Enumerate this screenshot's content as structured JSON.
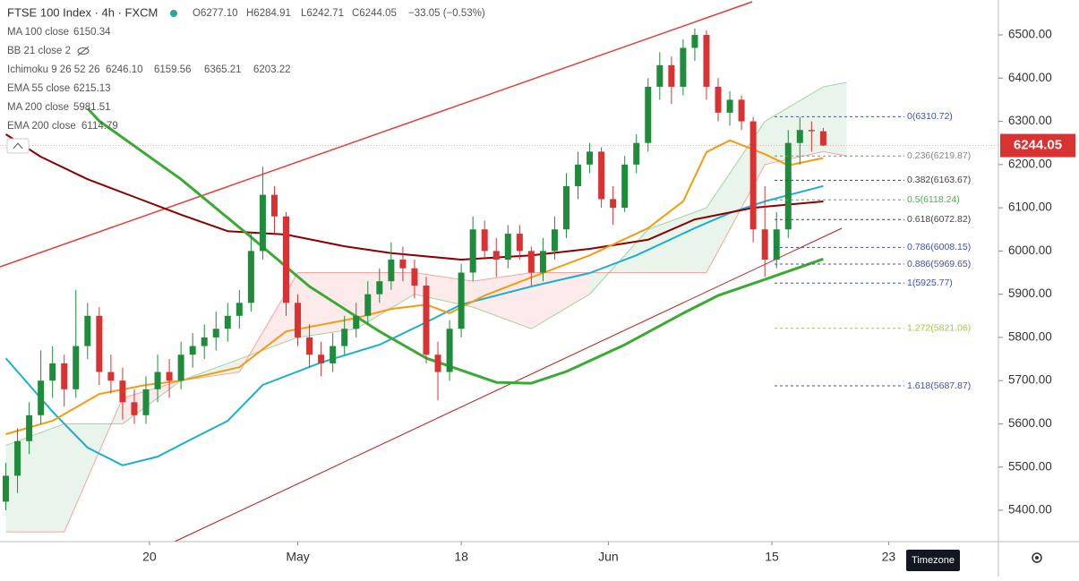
{
  "header": {
    "symbol": "FTSE 100 Index · 4h · FXCM",
    "ohlc": [
      "O6277.10",
      "H6284.91",
      "L6242.71",
      "C6244.05",
      "−33.05 (−0.53%)"
    ]
  },
  "indicators": [
    {
      "name": "MA 100 close",
      "values": [
        "6150.34"
      ],
      "colors": [
        "#00bcd4"
      ]
    },
    {
      "name": "BB 21 close 2"
    },
    {
      "name": "Ichimoku 9 26 52 26",
      "values": [
        "6246.10",
        "6159.56",
        "6365.21",
        "6203.22"
      ],
      "colors": [
        "#2196f3",
        "#880e4f",
        "#43a047",
        "#d32f2f"
      ]
    },
    {
      "name": "EMA 55 close",
      "values": [
        "6215.13"
      ],
      "colors": [
        "#f39c12"
      ]
    },
    {
      "name": "MA 200 close",
      "values": [
        "5981.51"
      ],
      "colors": [
        "#3aaa35"
      ]
    },
    {
      "name": "EMA 200 close",
      "values": [
        "6114.79"
      ],
      "colors": [
        "#8b0000"
      ]
    }
  ],
  "chart_data": {
    "type": "candlestick",
    "up_color": "#1e8c3a",
    "down_color": "#d83232",
    "open": [
      5420,
      5480,
      5560,
      5620,
      5700,
      5740,
      5680,
      5780,
      5850,
      5720,
      5700,
      5650,
      5620,
      5680,
      5720,
      5700,
      5760,
      5780,
      5800,
      5820,
      5850,
      5880,
      6000,
      6130,
      6080,
      5880,
      5800,
      5760,
      5740,
      5780,
      5820,
      5850,
      5900,
      5930,
      5980,
      5960,
      5920,
      5760,
      5720,
      5820,
      5950,
      6050,
      6000,
      5980,
      6040,
      6000,
      5950,
      6000,
      6050,
      6150,
      6200,
      6230,
      6120,
      6100,
      6200,
      6250,
      6380,
      6430,
      6380,
      6470,
      6500,
      6380,
      6320,
      6350,
      6300,
      6050,
      5980,
      6050,
      6250,
      6280,
      6277.1
    ],
    "high": [
      5510,
      5590,
      5650,
      5770,
      5780,
      5760,
      5910,
      5880,
      5870,
      5760,
      5730,
      5680,
      5710,
      5760,
      5750,
      5790,
      5810,
      5830,
      5860,
      5880,
      5910,
      6040,
      6195,
      6150,
      6090,
      5900,
      5830,
      5790,
      5810,
      5850,
      5880,
      5930,
      5960,
      6020,
      6010,
      5980,
      5940,
      5790,
      5840,
      5970,
      6080,
      6070,
      6030,
      6060,
      6060,
      6010,
      6030,
      6080,
      6180,
      6230,
      6250,
      6240,
      6150,
      6220,
      6270,
      6400,
      6460,
      6450,
      6490,
      6515,
      6510,
      6400,
      6370,
      6360,
      6310,
      6150,
      6090,
      6280,
      6310,
      6300,
      6284.91
    ],
    "low": [
      5400,
      5440,
      5530,
      5600,
      5660,
      5640,
      5660,
      5750,
      5690,
      5670,
      5610,
      5600,
      5600,
      5650,
      5660,
      5680,
      5730,
      5750,
      5770,
      5790,
      5820,
      5860,
      5980,
      6040,
      5850,
      5780,
      5730,
      5710,
      5720,
      5760,
      5800,
      5830,
      5880,
      5910,
      5930,
      5890,
      5740,
      5655,
      5700,
      5800,
      5930,
      5980,
      5940,
      5960,
      5980,
      5920,
      5930,
      5980,
      6030,
      6120,
      6180,
      6100,
      6060,
      6090,
      6180,
      6230,
      6350,
      6340,
      6360,
      6440,
      6350,
      6300,
      6290,
      6280,
      6020,
      5940,
      5960,
      6030,
      6200,
      6230,
      6242.71
    ],
    "close": [
      5480,
      5560,
      5620,
      5700,
      5740,
      5680,
      5780,
      5850,
      5720,
      5700,
      5650,
      5620,
      5680,
      5720,
      5700,
      5760,
      5780,
      5800,
      5820,
      5850,
      5880,
      6000,
      6130,
      6080,
      5880,
      5800,
      5760,
      5740,
      5780,
      5820,
      5850,
      5900,
      5930,
      5980,
      5960,
      5920,
      5760,
      5720,
      5820,
      5950,
      6050,
      6000,
      5980,
      6040,
      6000,
      5950,
      6000,
      6050,
      6150,
      6200,
      6230,
      6120,
      6100,
      6200,
      6250,
      6380,
      6430,
      6380,
      6470,
      6500,
      6380,
      6320,
      6350,
      6300,
      6050,
      5980,
      6050,
      6250,
      6280,
      6277.1,
      6244.05
    ],
    "lines": [
      {
        "name": "MA 100 close",
        "color": "#1aafd0",
        "width": 2,
        "x": [
          0,
          4,
          7,
          10,
          13,
          16,
          19,
          22,
          27,
          32,
          36,
          39,
          45,
          50,
          54,
          59,
          62,
          65,
          70
        ],
        "values": [
          5752,
          5628,
          5545,
          5504,
          5524,
          5566,
          5607,
          5690,
          5742,
          5783,
          5835,
          5876,
          5918,
          5949,
          5990,
          6053,
          6088,
          6115,
          6150.34
        ]
      },
      {
        "name": "EMA 200 close",
        "color": "#8b0000",
        "width": 2,
        "x": [
          0,
          3,
          7,
          11,
          15,
          19,
          24,
          29,
          33,
          39,
          45,
          50,
          55,
          59,
          64,
          70
        ],
        "values": [
          6270,
          6218,
          6166,
          6125,
          6084,
          6046,
          6038,
          6011,
          5995,
          5980,
          5990,
          6005,
          6026,
          6073,
          6100,
          6114.79
        ]
      },
      {
        "name": "EMA 55 close",
        "color": "#f39c12",
        "width": 2,
        "x": [
          0,
          4,
          8,
          12,
          15,
          20,
          24,
          30,
          33,
          36,
          38,
          41,
          45,
          50,
          55,
          58,
          60,
          62,
          65,
          67,
          70
        ],
        "values": [
          5576,
          5607,
          5669,
          5690,
          5700,
          5731,
          5814,
          5845,
          5866,
          5876,
          5856,
          5897,
          5939,
          5990,
          6053,
          6115,
          6229,
          6256,
          6224,
          6198,
          6215.13
        ]
      },
      {
        "name": "MA 200 close",
        "color": "#3aaa35",
        "width": 3,
        "x": [
          7,
          8,
          15,
          21,
          26,
          32,
          36,
          42,
          45,
          48,
          53,
          58,
          61,
          65,
          70
        ],
        "values": [
          6330,
          6301,
          6166,
          6032,
          5918,
          5814,
          5752,
          5696,
          5694,
          5721,
          5783,
          5856,
          5897,
          5934,
          5981.51
        ]
      }
    ],
    "cloud": {
      "x": [
        0,
        5,
        10,
        15,
        20,
        25,
        30,
        35,
        40,
        45,
        50,
        55,
        60,
        65,
        70,
        72
      ],
      "span_a": [
        5550,
        5600,
        5600,
        5700,
        5750,
        5800,
        5820,
        5900,
        5870,
        5820,
        5900,
        6050,
        6100,
        6300,
        6380,
        6390
      ],
      "span_b": [
        5350,
        5350,
        5660,
        5700,
        5720,
        5950,
        5950,
        5950,
        5930,
        5950,
        5950,
        5950,
        5950,
        6200,
        6230,
        6220
      ],
      "up_color": "#4caf50",
      "down_color": "#ef5350"
    },
    "fib": [
      {
        "label": "0(6310.72)",
        "value": 6310.72,
        "color": "#3f51b5"
      },
      {
        "label": "0.236(6219.87)",
        "value": 6219.87,
        "color": "#888888"
      },
      {
        "label": "0.382(6163.67)",
        "value": 6163.67,
        "color": "#444444"
      },
      {
        "label": "0.5(6118.24)",
        "value": 6118.24,
        "color": "#4caf50"
      },
      {
        "label": "0.618(6072.82)",
        "value": 6072.82,
        "color": "#444444"
      },
      {
        "label": "0.786(6008.15)",
        "value": 6008.15,
        "color": "#3f51b5"
      },
      {
        "label": "0.886(5969.65)",
        "value": 5969.65,
        "color": "#3f51b5"
      },
      {
        "label": "1(5925.77)",
        "value": 5925.77,
        "color": "#3f51b5"
      },
      {
        "label": "1.272(5821.06)",
        "value": 5821.06,
        "color": "#9acd32"
      },
      {
        "label": "1.618(5687.87)",
        "value": 5687.87,
        "color": "#3f51b5"
      }
    ],
    "xlim": [
      -0.5,
      85
    ],
    "ylim": [
      5327.5,
      6580.8
    ],
    "xticks": [
      {
        "value": 12.3,
        "label": "20"
      },
      {
        "value": 25,
        "label": "May"
      },
      {
        "value": 39,
        "label": "18"
      },
      {
        "value": 51.6,
        "label": "Jun"
      },
      {
        "value": 65.6,
        "label": "15"
      },
      {
        "value": 75.6,
        "label": "23"
      }
    ],
    "yticks": [
      {
        "value": 5400,
        "label": "5400.00"
      },
      {
        "value": 5500,
        "label": "5500.00"
      },
      {
        "value": 5600,
        "label": "5600.00"
      },
      {
        "value": 5700,
        "label": "5700.00"
      },
      {
        "value": 5800,
        "label": "5800.00"
      },
      {
        "value": 5900,
        "label": "5900.00"
      },
      {
        "value": 6000,
        "label": "6000.00"
      },
      {
        "value": 6100,
        "label": "6100.00"
      },
      {
        "value": 6200,
        "label": "6200.00"
      },
      {
        "value": 6300,
        "label": "6300.00"
      },
      {
        "value": 6400,
        "label": "6400.00"
      },
      {
        "value": 6500,
        "label": "6500.00"
      }
    ],
    "timezone_button": "Timezone"
  }
}
